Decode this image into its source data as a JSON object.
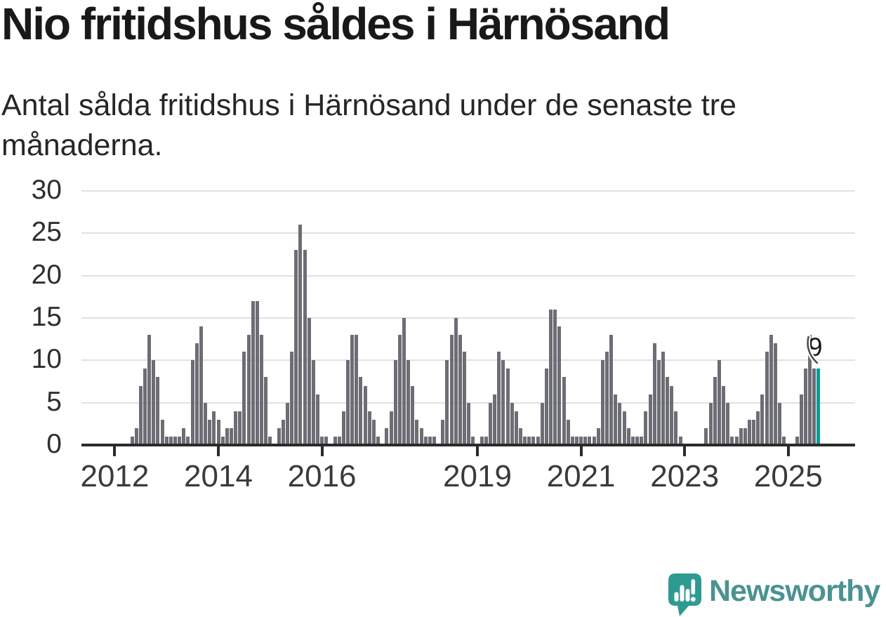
{
  "title": "Nio fritidshus såldes i Härnösand",
  "subtitle": "Antal sålda fritidshus i Härnösand under de senaste tre månaderna.",
  "subtitle_lines": [
    "Antal sålda fritidshus i Härnösand under de senaste tre",
    "månaderna."
  ],
  "annotation": {
    "label": "9"
  },
  "logo": {
    "brand": "Newsworthy",
    "icon": "speech-bubble-bar-chart-icon"
  },
  "colors": {
    "bar": "#6d6d75",
    "highlight": "#0d9b98",
    "gridline": "#e1e1e1",
    "axis": "#2b2b2b",
    "title_text": "#191919",
    "subtitle_text": "#262626",
    "tick_label": "#3a3a3a",
    "logo_teal": "#4a9391",
    "logo_bubble": "#2f9a92"
  },
  "chart_data": {
    "type": "bar",
    "title": "Nio fritidshus såldes i Härnösand",
    "subtitle": "Antal sålda fritidshus i Härnösand under de senaste tre månaderna.",
    "xlabel": "",
    "ylabel": "",
    "ylim": [
      0,
      30
    ],
    "yticks": [
      0,
      5,
      10,
      15,
      20,
      25,
      30
    ],
    "grid": true,
    "legend": false,
    "x_unit": "month (rolling 3-month sales count)",
    "x_range_note": "monthly bars from mid-2011 to 2025",
    "xtick_labels": [
      "2012",
      "2014",
      "2016",
      "2019",
      "2021",
      "2023",
      "2025"
    ],
    "xtick_indices": [
      6,
      30,
      54,
      90,
      114,
      138,
      162
    ],
    "values": [
      0,
      0,
      0,
      0,
      0,
      0,
      0,
      0,
      0,
      0,
      1,
      2,
      7,
      9,
      13,
      10,
      8,
      3,
      1,
      1,
      1,
      1,
      2,
      1,
      10,
      12,
      14,
      5,
      3,
      4,
      3,
      1,
      2,
      2,
      4,
      4,
      11,
      13,
      17,
      17,
      13,
      8,
      1,
      0,
      2,
      3,
      5,
      11,
      23,
      26,
      23,
      15,
      10,
      6,
      1,
      1,
      0,
      1,
      1,
      4,
      10,
      13,
      13,
      8,
      7,
      4,
      3,
      1,
      0,
      2,
      4,
      10,
      13,
      15,
      10,
      7,
      3,
      2,
      1,
      1,
      1,
      0,
      3,
      10,
      13,
      15,
      13,
      11,
      5,
      1,
      0,
      1,
      1,
      5,
      6,
      11,
      10,
      9,
      5,
      4,
      2,
      1,
      1,
      1,
      1,
      5,
      9,
      16,
      16,
      14,
      8,
      3,
      1,
      1,
      1,
      1,
      1,
      1,
      2,
      10,
      11,
      13,
      6,
      5,
      4,
      2,
      1,
      1,
      1,
      4,
      6,
      12,
      10,
      11,
      8,
      7,
      4,
      1,
      0,
      0,
      0,
      0,
      0,
      2,
      5,
      8,
      10,
      7,
      5,
      1,
      1,
      2,
      2,
      3,
      3,
      4,
      6,
      11,
      13,
      12,
      5,
      1,
      0,
      0,
      1,
      6,
      9,
      13,
      9,
      9
    ],
    "highlight_index": 169,
    "highlight_value": 9,
    "annotation_label": "9"
  }
}
